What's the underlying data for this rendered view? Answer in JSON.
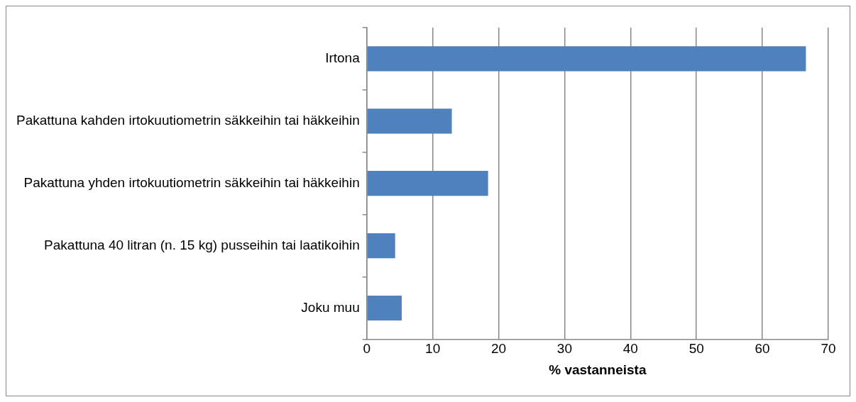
{
  "chart_data": {
    "type": "bar",
    "orientation": "horizontal",
    "xlabel": "% vastanneista",
    "categories": [
      "Irtona",
      "Pakattuna kahden irtokuutiometrin säkkeihin tai häkkeihin",
      "Pakattuna yhden irtokuutiometrin säkkeihin tai häkkeihin",
      "Pakattuna 40 litran (n. 15 kg) pusseihin tai laatikoihin",
      "Joku muu"
    ],
    "values": [
      66.6,
      12.9,
      18.4,
      4.3,
      5.3
    ],
    "color": "#4f81bd",
    "xlim": [
      0,
      70
    ],
    "xticks": [
      0,
      10,
      20,
      30,
      40,
      50,
      60,
      70
    ],
    "grid": "x",
    "legend": false
  }
}
